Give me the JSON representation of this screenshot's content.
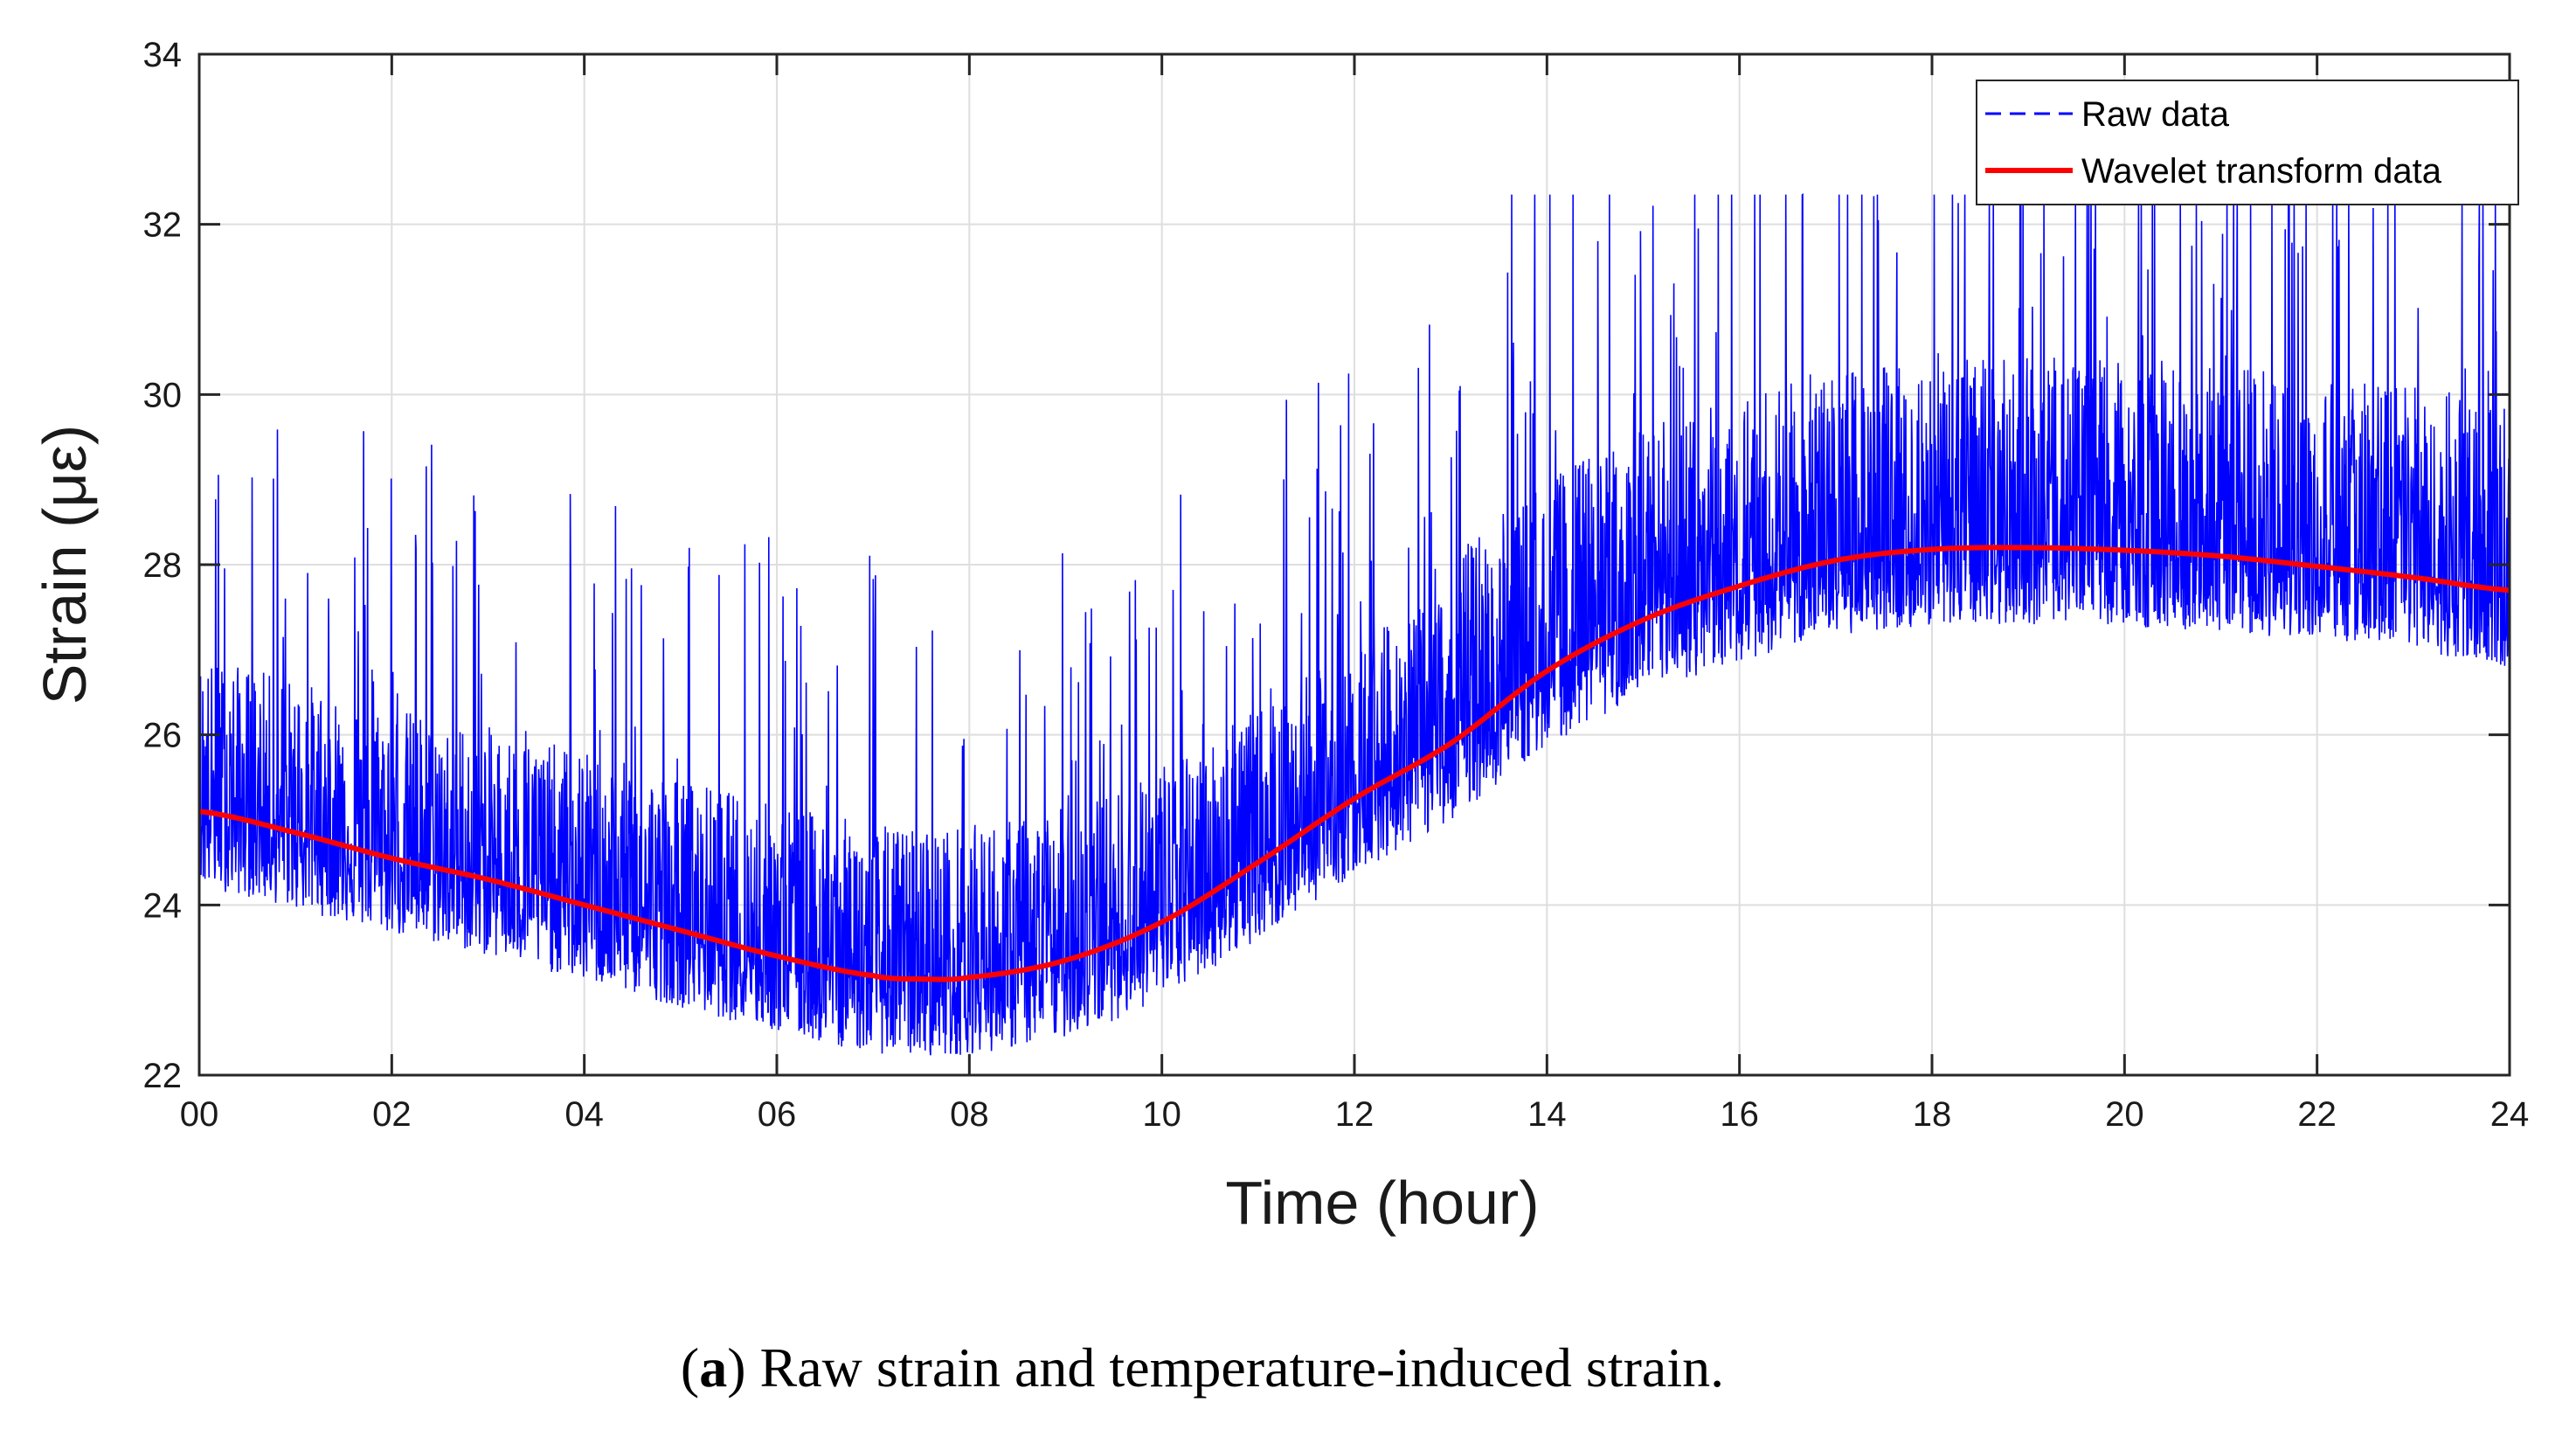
{
  "chart_data": {
    "type": "line",
    "title": "",
    "xlabel": "Time (hour)",
    "ylabel": "Strain (με)",
    "xlim": [
      0,
      24
    ],
    "ylim": [
      22,
      34
    ],
    "grid": true,
    "legend_position": "top-right",
    "x_ticks": [
      0,
      2,
      4,
      6,
      8,
      10,
      12,
      14,
      16,
      18,
      20,
      22,
      24
    ],
    "x_tick_labels": [
      "00",
      "02",
      "04",
      "06",
      "08",
      "10",
      "12",
      "14",
      "16",
      "18",
      "20",
      "22",
      "24"
    ],
    "y_ticks": [
      22,
      24,
      26,
      28,
      30,
      32,
      34
    ],
    "y_tick_labels": [
      "22",
      "24",
      "26",
      "28",
      "30",
      "32",
      "34"
    ],
    "series": [
      {
        "name": "Raw data",
        "style": "dashed",
        "color": "#0000ff",
        "description_values": {
          "baseline_follows": "Wavelet transform data",
          "noise_below": 0.9,
          "noise_above_typical": 1.8,
          "max_spike": 32.35,
          "min_value": 22.05
        }
      },
      {
        "name": "Wavelet transform data",
        "style": "solid",
        "color": "#ff0000",
        "x": [
          0,
          1,
          2,
          3,
          4,
          5,
          6,
          7,
          7.5,
          8,
          9,
          10,
          11,
          12,
          13,
          14,
          15,
          16,
          17,
          18,
          19,
          20,
          21,
          22,
          23,
          24
        ],
        "y": [
          25.1,
          24.85,
          24.55,
          24.3,
          24.0,
          23.7,
          23.4,
          23.17,
          23.13,
          23.15,
          23.35,
          23.8,
          24.5,
          25.25,
          25.9,
          26.75,
          27.35,
          27.75,
          28.05,
          28.18,
          28.2,
          28.17,
          28.1,
          27.98,
          27.85,
          27.7
        ]
      }
    ]
  },
  "legend": {
    "raw_label": "Raw data",
    "wavelet_label": "Wavelet transform data"
  },
  "caption": {
    "label": "a",
    "text": " Raw strain and temperature-induced strain."
  }
}
